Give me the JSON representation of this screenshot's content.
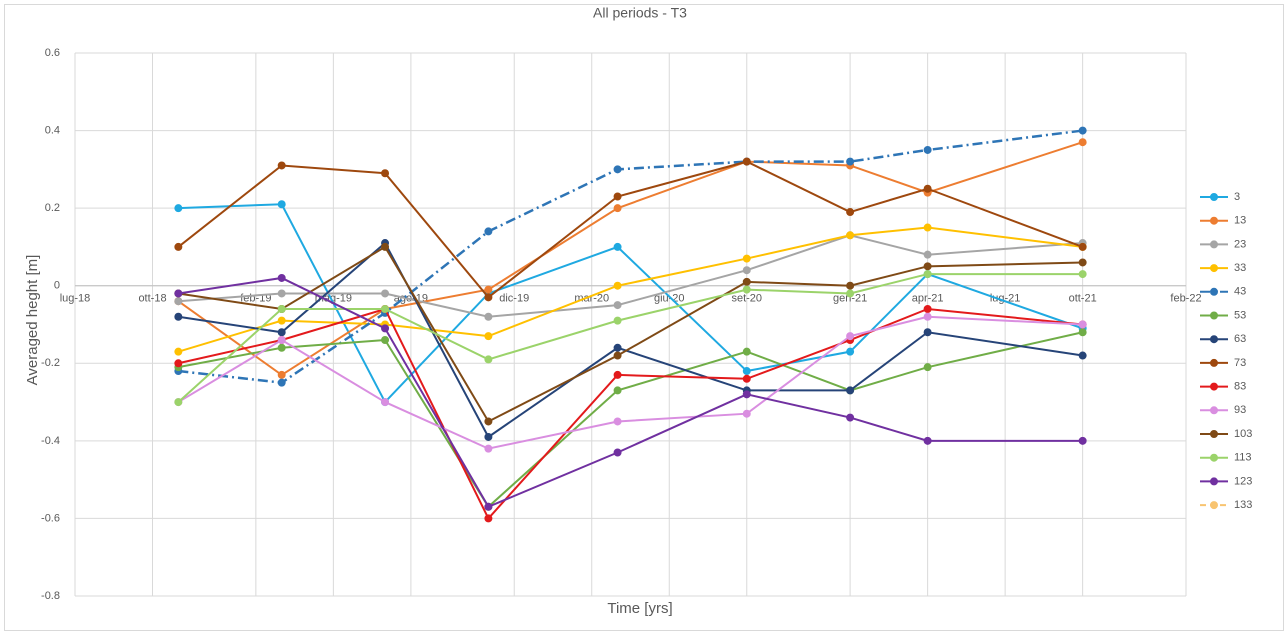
{
  "chart_data": {
    "type": "line",
    "title": "All periods - T3",
    "x_label": "Time [yrs]",
    "y_label": "Averaged heght [m]",
    "x": [
      "2018-11",
      "2019-03",
      "2019-07",
      "2019-11",
      "2020-04",
      "2020-09",
      "2021-01",
      "2021-04",
      "2021-10"
    ],
    "xlim": [
      "2018-07",
      "2022-02"
    ],
    "xticks": [
      {
        "value": "2018-07",
        "label": "lug-18"
      },
      {
        "value": "2018-10",
        "label": "ott-18"
      },
      {
        "value": "2019-02",
        "label": "feb-19"
      },
      {
        "value": "2019-05",
        "label": "mag-19"
      },
      {
        "value": "2019-08",
        "label": "ago-19"
      },
      {
        "value": "2019-12",
        "label": "dic-19"
      },
      {
        "value": "2020-03",
        "label": "mar-20"
      },
      {
        "value": "2020-06",
        "label": "giu-20"
      },
      {
        "value": "2020-09",
        "label": "set-20"
      },
      {
        "value": "2021-01",
        "label": "gen-21"
      },
      {
        "value": "2021-04",
        "label": "apr-21"
      },
      {
        "value": "2021-07",
        "label": "lug-21"
      },
      {
        "value": "2021-10",
        "label": "ott-21"
      },
      {
        "value": "2022-02",
        "label": "feb-22"
      }
    ],
    "ylim": [
      -0.8,
      0.6
    ],
    "yticks": [
      0.6,
      0.4,
      0.2,
      0,
      -0.2,
      -0.4,
      -0.6,
      -0.8
    ],
    "grid": true,
    "legend": "right",
    "series": [
      {
        "name": "3",
        "color": "#1fa9e1",
        "values": [
          0.2,
          0.21,
          -0.3,
          -0.02,
          0.1,
          -0.22,
          -0.17,
          0.03,
          -0.11
        ]
      },
      {
        "name": "13",
        "color": "#ed7d31",
        "values": [
          -0.04,
          -0.23,
          -0.06,
          -0.01,
          0.2,
          0.32,
          0.31,
          0.24,
          0.37
        ]
      },
      {
        "name": "23",
        "color": "#a5a5a5",
        "values": [
          -0.04,
          -0.02,
          -0.02,
          -0.08,
          -0.05,
          0.04,
          0.13,
          0.08,
          0.11
        ]
      },
      {
        "name": "33",
        "color": "#ffc000",
        "values": [
          -0.17,
          -0.09,
          -0.1,
          -0.13,
          0.0,
          0.07,
          0.13,
          0.15,
          0.1
        ]
      },
      {
        "name": "43",
        "color": "#2e75b6",
        "dash": "dashdot",
        "values": [
          -0.22,
          -0.25,
          -0.07,
          0.14,
          0.3,
          0.32,
          0.32,
          0.35,
          0.4
        ]
      },
      {
        "name": "53",
        "color": "#70ad47",
        "values": [
          -0.21,
          -0.16,
          -0.14,
          -0.57,
          -0.27,
          -0.17,
          -0.27,
          -0.21,
          -0.12
        ]
      },
      {
        "name": "63",
        "color": "#264478",
        "values": [
          -0.08,
          -0.12,
          0.11,
          -0.39,
          -0.16,
          -0.27,
          -0.27,
          -0.12,
          -0.18
        ]
      },
      {
        "name": "73",
        "color": "#9e480e",
        "values": [
          0.1,
          0.31,
          0.29,
          -0.03,
          0.23,
          0.32,
          0.19,
          0.25,
          0.1
        ]
      },
      {
        "name": "83",
        "color": "#e31a1c",
        "values": [
          -0.2,
          -0.14,
          -0.06,
          -0.6,
          -0.23,
          -0.24,
          -0.14,
          -0.06,
          -0.1
        ]
      },
      {
        "name": "93",
        "color": "#d98ee0",
        "values": [
          -0.3,
          -0.14,
          -0.3,
          -0.42,
          -0.35,
          -0.33,
          -0.13,
          -0.08,
          -0.1
        ]
      },
      {
        "name": "103",
        "color": "#7f4a16",
        "values": [
          -0.02,
          -0.06,
          0.1,
          -0.35,
          -0.18,
          0.01,
          0.0,
          0.05,
          0.06
        ]
      },
      {
        "name": "113",
        "color": "#9bd36a",
        "values": [
          -0.3,
          -0.06,
          -0.06,
          -0.19,
          -0.09,
          -0.01,
          -0.02,
          0.03,
          0.03
        ]
      },
      {
        "name": "123",
        "color": "#7030a0",
        "values": [
          -0.02,
          0.02,
          -0.11,
          -0.57,
          -0.43,
          -0.28,
          -0.34,
          -0.4,
          -0.4
        ]
      },
      {
        "name": "133",
        "color": "#f8c471",
        "dash": "dashed",
        "values": [
          null,
          null,
          null,
          null,
          null,
          null,
          null,
          null,
          null
        ]
      }
    ]
  }
}
